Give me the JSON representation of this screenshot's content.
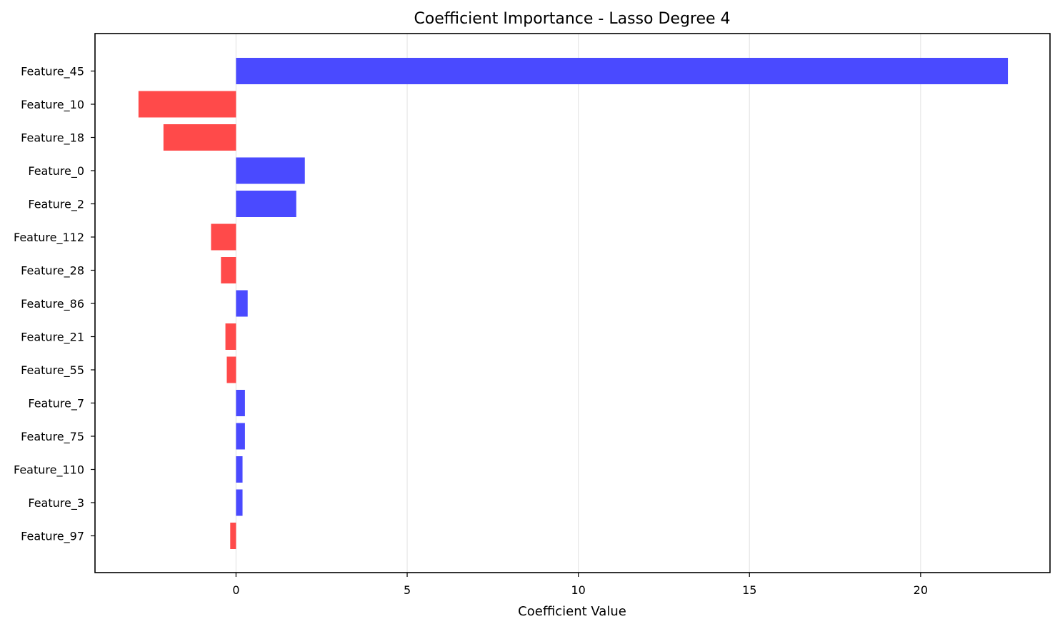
{
  "chart_data": {
    "type": "bar",
    "orientation": "horizontal",
    "title": "Coefficient Importance - Lasso Degree 4",
    "xlabel": "Coefficient Value",
    "ylabel": "",
    "categories": [
      "Feature_45",
      "Feature_10",
      "Feature_18",
      "Feature_0",
      "Feature_2",
      "Feature_112",
      "Feature_28",
      "Feature_86",
      "Feature_21",
      "Feature_55",
      "Feature_7",
      "Feature_75",
      "Feature_110",
      "Feature_3",
      "Feature_97"
    ],
    "values": [
      22.55,
      -2.85,
      -2.12,
      2.01,
      1.76,
      -0.73,
      -0.44,
      0.34,
      -0.31,
      -0.27,
      0.26,
      0.26,
      0.19,
      0.19,
      -0.17
    ],
    "xlim": [
      -4.12,
      23.78
    ],
    "xticks": [
      0,
      5,
      10,
      15,
      20
    ],
    "grid": "x",
    "colors": {
      "positive": "#4a4aff",
      "negative": "#ff4a4a",
      "grid": "#e6e6e6",
      "axis": "#000000"
    }
  }
}
